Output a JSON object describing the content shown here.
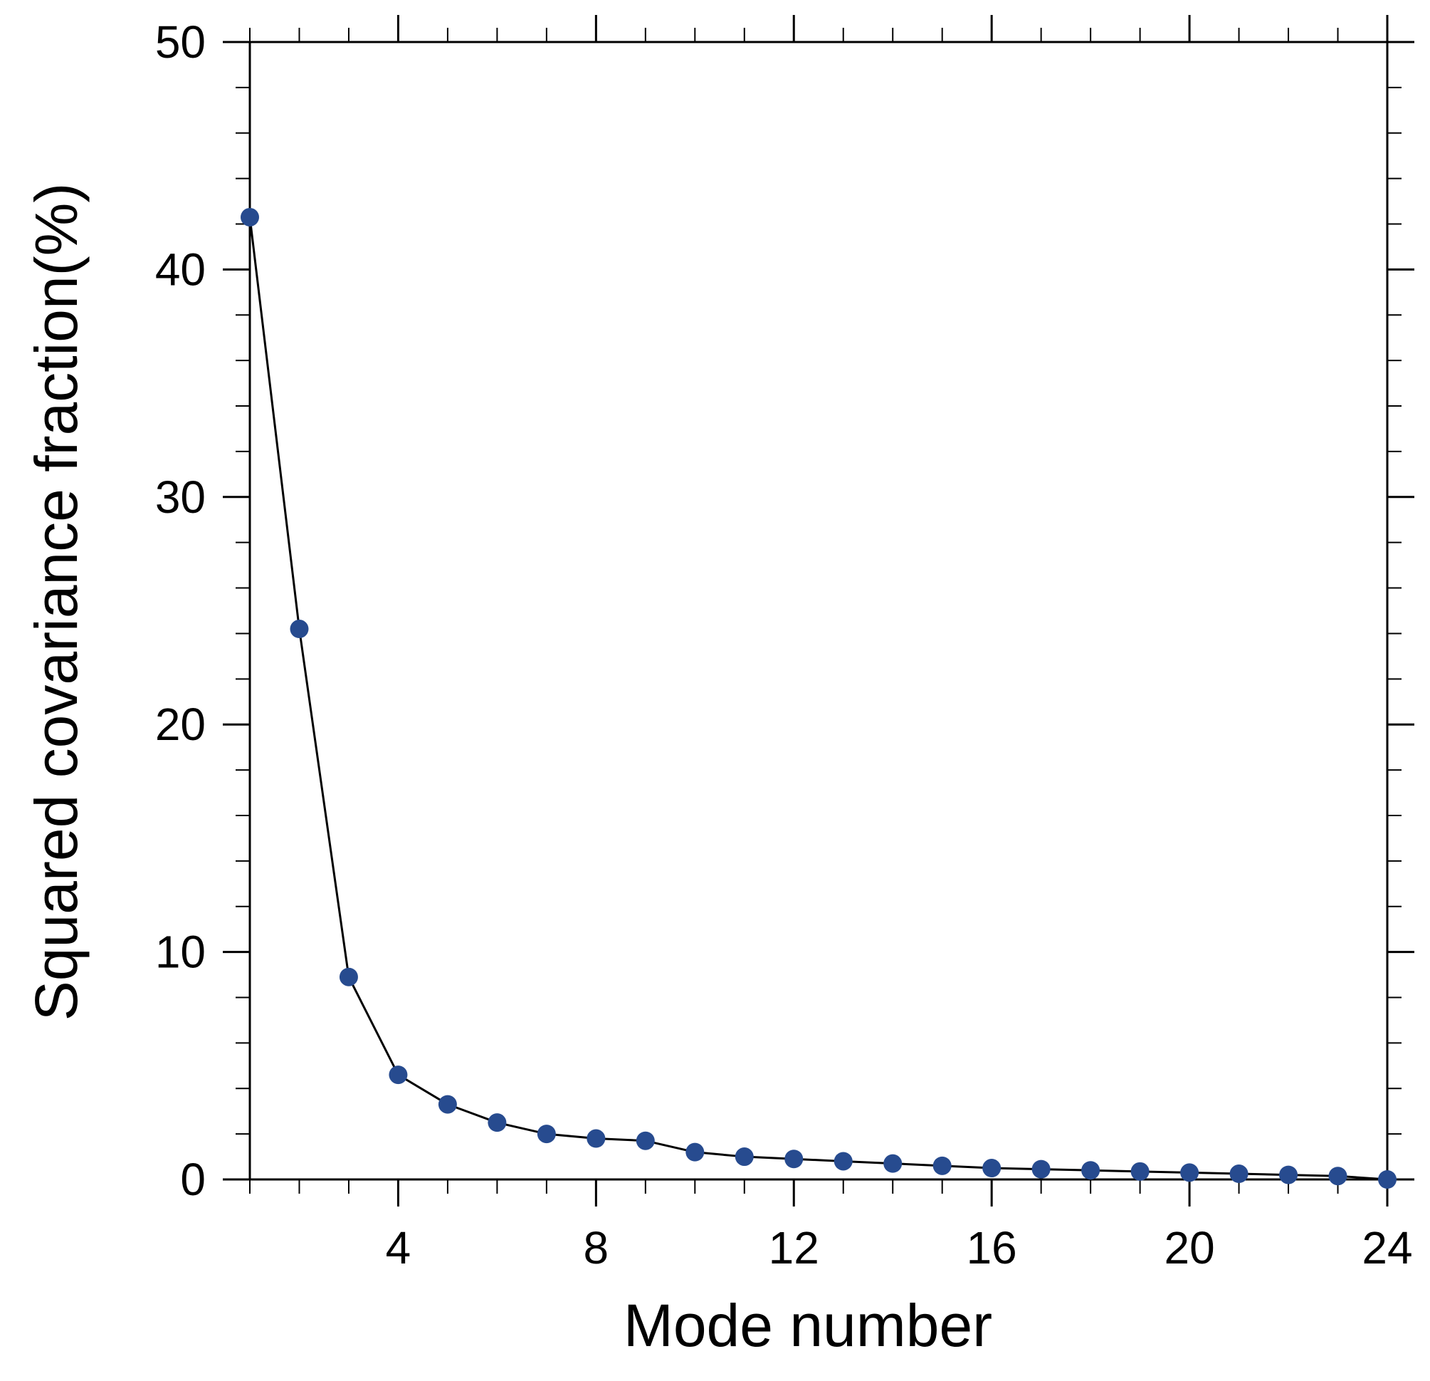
{
  "chart_data": {
    "type": "line",
    "title": "",
    "xlabel": "Mode number",
    "ylabel": "Squared covariance fraction(%)",
    "xlim": [
      1,
      24
    ],
    "ylim": [
      0,
      50
    ],
    "x_major_ticks": [
      4,
      8,
      12,
      16,
      20,
      24
    ],
    "x_minor_ticks": [
      1,
      2,
      3,
      5,
      6,
      7,
      9,
      10,
      11,
      13,
      14,
      15,
      17,
      18,
      19,
      21,
      22,
      23
    ],
    "y_major_ticks": [
      0,
      10,
      20,
      30,
      40,
      50
    ],
    "y_minor_step": 2,
    "grid": false,
    "line_color": "#000000",
    "marker_color": "#274b8f",
    "x": [
      1,
      2,
      3,
      4,
      5,
      6,
      7,
      8,
      9,
      10,
      11,
      12,
      13,
      14,
      15,
      16,
      17,
      18,
      19,
      20,
      21,
      22,
      23,
      24
    ],
    "y": [
      42.3,
      24.2,
      8.9,
      4.6,
      3.3,
      2.5,
      2.0,
      1.8,
      1.7,
      1.2,
      1.0,
      0.9,
      0.8,
      0.7,
      0.6,
      0.5,
      0.45,
      0.4,
      0.35,
      0.3,
      0.25,
      0.2,
      0.15,
      0.0
    ]
  }
}
